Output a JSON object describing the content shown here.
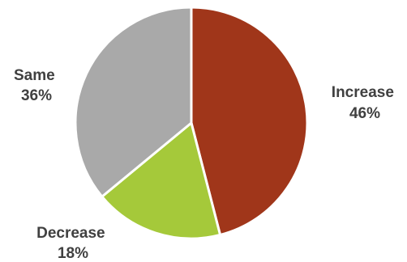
{
  "chart_data": {
    "type": "pie",
    "title": "",
    "start_angle_deg": 0,
    "direction": "clockwise",
    "border_color": "#ffffff",
    "slices": [
      {
        "label": "Increase",
        "value": 46,
        "value_text": "46%",
        "color": "#A0361A"
      },
      {
        "label": "Decrease",
        "value": 18,
        "value_text": "18%",
        "color": "#A5C93A"
      },
      {
        "label": "Same",
        "value": 36,
        "value_text": "36%",
        "color": "#A9A9A9"
      }
    ]
  }
}
